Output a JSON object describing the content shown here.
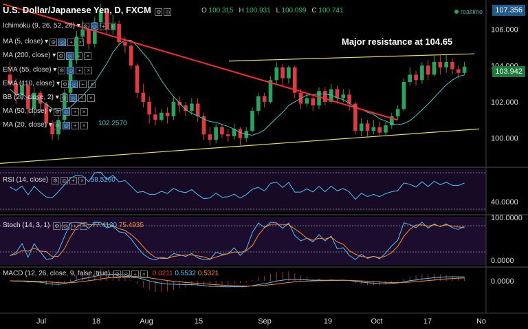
{
  "header": {
    "symbol": "U.S. Dollar/Japanese Yen, D, FXCM",
    "open_label": "O",
    "open": "100.315",
    "high_label": "H",
    "high": "100.931",
    "low_label": "L",
    "low": "100.099",
    "close_label": "C",
    "close": "100.741",
    "realtime": "realtime"
  },
  "indicators": [
    "Ichimoku (9, 26, 52, 26)",
    "MA (5, close)",
    "MA (200, close)",
    "EMA (55, close)",
    "EMA (110, close)",
    "BB (20, close, 2)",
    "MA (50, close)",
    "MA (20, close)"
  ],
  "ma20_value": "102.2570",
  "annotation": "Major resistance at 104.65",
  "price_axis": {
    "ticks": [
      "106.000",
      "104.000",
      "102.000",
      "100.000"
    ],
    "top_label": "107.356",
    "last_label": "103.942",
    "top_color": "#1e5a8c",
    "last_color": "#1e7a3a"
  },
  "rsi": {
    "label": "RSI (14, close)",
    "value": "58.5260",
    "axis": "40.0000",
    "color": "#4fc3f7"
  },
  "stoch": {
    "label": "Stoch (14, 3, 1)",
    "k": "77.4120",
    "d": "75.4935",
    "axis_top": "100.0000",
    "axis_bottom": "0.0000"
  },
  "macd": {
    "label": "MACD (12, 26, close, 9, false, true)",
    "hist": "0.0211",
    "macd": "0.5532",
    "signal": "0.5321",
    "axis": "0.0000"
  },
  "x_axis": [
    "Jul",
    "18",
    "Aug",
    "15",
    "Sep",
    "19",
    "Oct",
    "17",
    "No"
  ],
  "colors": {
    "up": "#26a65b",
    "down": "#e0393e",
    "resistance": "#ff2a2a",
    "channel": "#e8e04a",
    "ma": "#3ec6c6"
  },
  "chart_data": {
    "type": "candlestick",
    "title": "U.S. Dollar/Japanese Yen, D, FXCM",
    "ylim": [
      98.5,
      107.356
    ],
    "x": [
      "Jul",
      "18",
      "Aug",
      "15",
      "Sep",
      "19",
      "Oct",
      "17",
      "No"
    ],
    "series": [
      {
        "name": "USD/JPY",
        "values": [
          [
            103.5,
            103.0,
            104.2,
            102.8
          ],
          [
            103.0,
            102.4,
            103.3,
            101.9
          ],
          [
            102.4,
            102.9,
            103.1,
            102.1
          ],
          [
            102.9,
            101.6,
            103.0,
            101.3
          ],
          [
            101.6,
            102.5,
            102.8,
            101.2
          ],
          [
            102.5,
            101.9,
            102.6,
            101.5
          ],
          [
            101.9,
            100.8,
            102.0,
            100.6
          ],
          [
            100.8,
            100.2,
            101.0,
            99.9
          ],
          [
            100.2,
            101.0,
            101.2,
            99.9
          ],
          [
            101.0,
            102.5,
            102.7,
            100.8
          ],
          [
            102.5,
            104.3,
            104.6,
            102.3
          ],
          [
            104.3,
            105.6,
            105.9,
            104.1
          ],
          [
            105.6,
            106.0,
            106.5,
            105.3
          ],
          [
            106.0,
            105.2,
            106.2,
            104.9
          ],
          [
            105.2,
            106.4,
            106.7,
            105.0
          ],
          [
            106.4,
            107.0,
            107.4,
            106.1
          ],
          [
            107.0,
            106.0,
            107.2,
            105.7
          ],
          [
            106.0,
            106.3,
            106.8,
            105.7
          ],
          [
            106.3,
            105.3,
            106.5,
            105.1
          ],
          [
            105.3,
            105.1,
            105.6,
            104.7
          ],
          [
            105.1,
            104.0,
            105.3,
            103.8
          ],
          [
            104.0,
            102.5,
            104.1,
            102.2
          ],
          [
            102.5,
            102.0,
            103.0,
            101.7
          ],
          [
            102.0,
            101.3,
            102.3,
            100.8
          ],
          [
            101.3,
            101.0,
            101.7,
            100.7
          ],
          [
            101.0,
            101.4,
            101.6,
            100.9
          ],
          [
            101.4,
            101.2,
            101.7,
            100.8
          ],
          [
            101.2,
            102.0,
            102.3,
            101.0
          ],
          [
            102.0,
            101.8,
            102.3,
            101.4
          ],
          [
            101.8,
            101.5,
            102.0,
            101.2
          ],
          [
            101.5,
            101.9,
            102.2,
            101.3
          ],
          [
            101.9,
            101.2,
            102.2,
            100.9
          ],
          [
            101.2,
            100.2,
            101.4,
            99.9
          ],
          [
            100.2,
            99.9,
            100.6,
            99.6
          ],
          [
            99.9,
            100.6,
            100.8,
            99.7
          ],
          [
            100.6,
            100.2,
            100.8,
            100.0
          ],
          [
            100.2,
            100.1,
            100.5,
            99.8
          ],
          [
            100.1,
            100.5,
            100.8,
            99.9
          ],
          [
            100.5,
            100.0,
            100.6,
            99.6
          ],
          [
            100.0,
            100.4,
            100.6,
            99.8
          ],
          [
            100.4,
            101.5,
            101.7,
            100.3
          ],
          [
            101.5,
            102.3,
            102.5,
            101.3
          ],
          [
            102.3,
            102.0,
            102.5,
            101.7
          ],
          [
            102.0,
            103.2,
            103.4,
            101.9
          ],
          [
            103.2,
            103.9,
            104.2,
            103.0
          ],
          [
            103.9,
            103.3,
            104.1,
            102.9
          ],
          [
            103.3,
            103.9,
            104.0,
            103.0
          ],
          [
            103.9,
            102.5,
            104.0,
            102.2
          ],
          [
            102.5,
            101.9,
            102.7,
            101.6
          ],
          [
            101.9,
            102.2,
            102.5,
            101.7
          ],
          [
            102.2,
            101.8,
            102.4,
            101.5
          ],
          [
            101.8,
            102.6,
            102.8,
            101.6
          ],
          [
            102.6,
            102.0,
            102.8,
            101.8
          ],
          [
            102.0,
            102.7,
            103.0,
            101.9
          ],
          [
            102.7,
            102.2,
            102.9,
            101.9
          ],
          [
            102.2,
            102.4,
            102.7,
            102.0
          ],
          [
            102.4,
            101.9,
            102.7,
            101.5
          ],
          [
            101.9,
            100.4,
            102.0,
            100.2
          ],
          [
            100.4,
            100.8,
            101.1,
            100.1
          ],
          [
            100.8,
            100.4,
            101.0,
            100.1
          ],
          [
            100.4,
            100.6,
            101.0,
            100.2
          ],
          [
            100.6,
            100.3,
            100.9,
            100.1
          ],
          [
            100.3,
            100.7,
            100.9,
            100.1
          ],
          [
            100.7,
            101.2,
            101.4,
            100.5
          ],
          [
            101.2,
            101.6,
            101.8,
            101.0
          ],
          [
            101.6,
            103.1,
            103.3,
            101.5
          ],
          [
            103.1,
            103.5,
            103.9,
            102.9
          ],
          [
            103.5,
            103.2,
            103.7,
            102.9
          ],
          [
            103.2,
            104.0,
            104.2,
            103.0
          ],
          [
            104.0,
            103.5,
            104.3,
            103.2
          ],
          [
            103.5,
            104.2,
            104.6,
            103.4
          ],
          [
            104.2,
            103.9,
            104.6,
            103.5
          ],
          [
            103.9,
            104.2,
            104.6,
            103.6
          ],
          [
            104.2,
            103.8,
            104.4,
            103.5
          ],
          [
            103.8,
            103.6,
            104.0,
            103.3
          ],
          [
            103.6,
            103.942,
            104.2,
            103.5
          ]
        ]
      }
    ],
    "resistance_line": [
      [
        0,
        107.4
      ],
      [
        73,
        101.0
      ]
    ],
    "channel_top_level": 104.65,
    "ylabel": "",
    "xlabel": ""
  }
}
